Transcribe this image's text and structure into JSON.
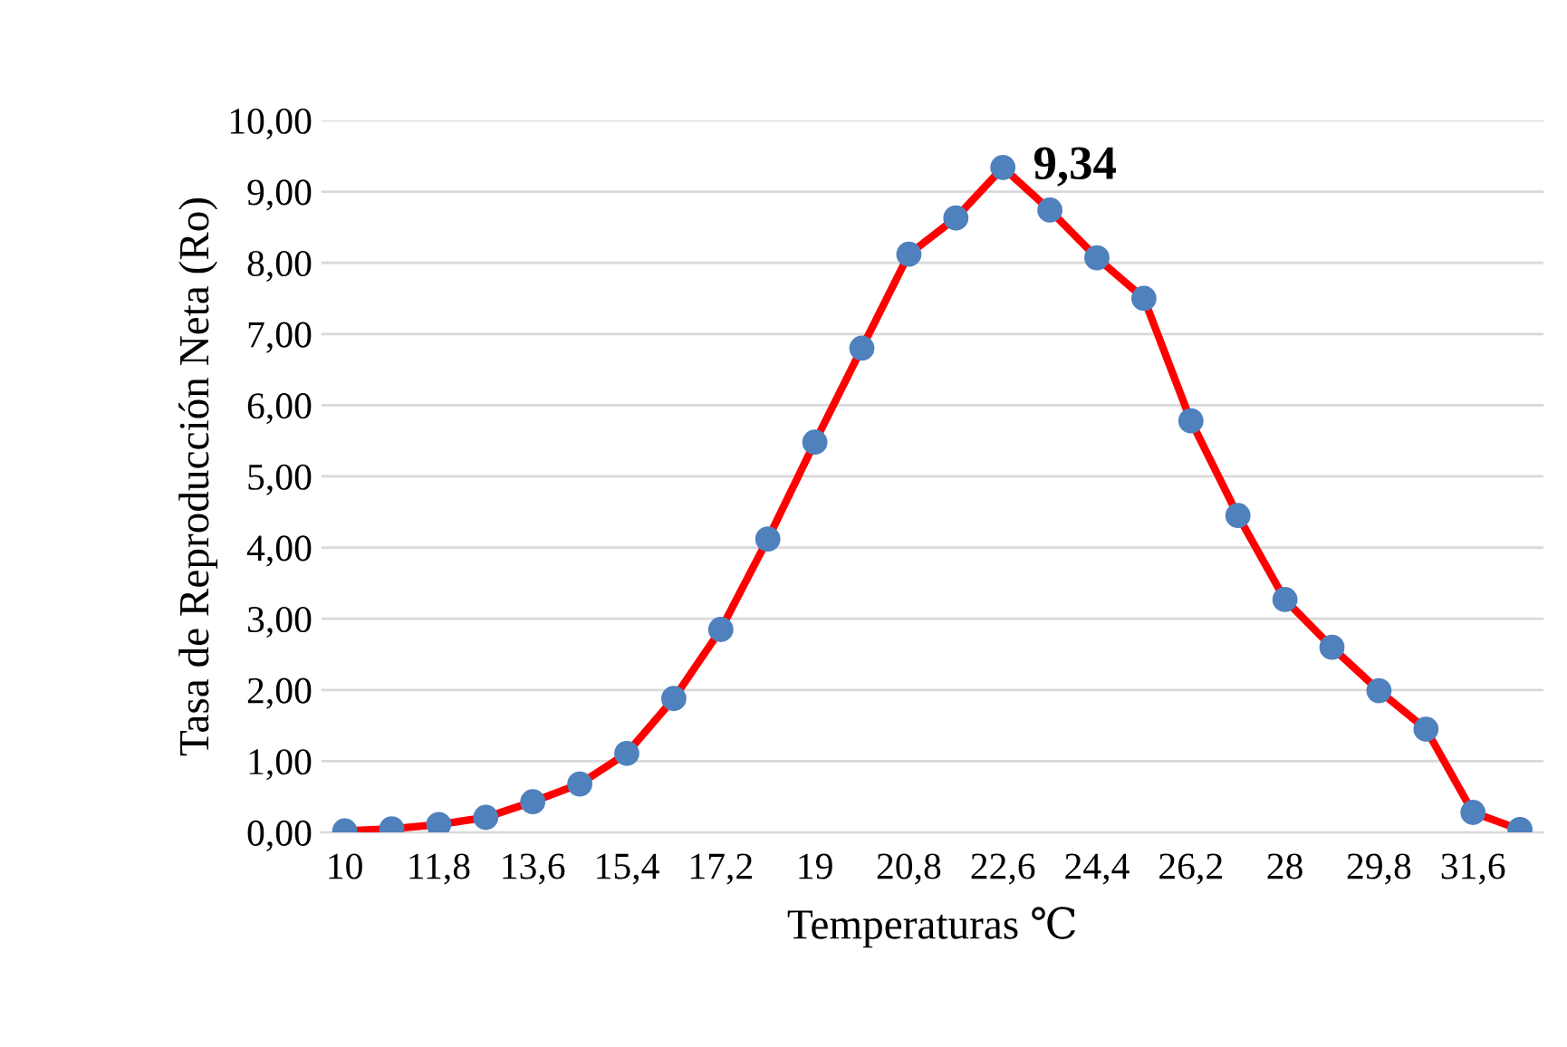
{
  "chart_data": {
    "type": "line",
    "xlabel": "Temperaturas ℃",
    "ylabel": "Tasa de Reproducción Neta (Ro)",
    "categories": [
      "10",
      null,
      "11,8",
      null,
      "13,6",
      null,
      "15,4",
      null,
      "17,2",
      null,
      "19",
      null,
      "20,8",
      null,
      "22,6",
      null,
      "24,4",
      null,
      "26,2",
      null,
      "28",
      null,
      "29,8",
      null,
      "31,6",
      null
    ],
    "series": [
      {
        "color": "#ff0000",
        "colors": [
          "#4f81bd",
          "#4f81bd",
          "#4f81bd",
          "#4f81bd",
          "#4f81bd",
          "#4f81bd",
          "#4f81bd",
          "#4f81bd",
          "#4f81bd",
          "#4f81bd",
          "#4f81bd",
          "#4f81bd",
          "#4f81bd",
          "#4f81bd",
          "#4f81bd",
          "#4f81bd",
          "#4f81bd",
          "#4f81bd",
          "#4f81bd",
          "#4f81bd",
          "#4f81bd",
          "#4f81bd",
          "#4f81bd",
          "#4f81bd",
          "#4f81bd",
          "#4f81bd"
        ],
        "values": [
          0.02,
          0.05,
          0.11,
          0.21,
          0.43,
          0.68,
          1.11,
          1.88,
          2.85,
          4.12,
          5.48,
          6.8,
          8.12,
          8.63,
          9.34,
          8.74,
          8.07,
          7.5,
          5.78,
          4.45,
          3.27,
          2.6,
          1.99,
          1.45,
          0.28,
          0.04
        ]
      }
    ],
    "ylim": [
      0,
      10
    ],
    "yticks": [
      {
        "value": 0,
        "label": "0,00"
      },
      {
        "value": 1,
        "label": "1,00"
      },
      {
        "value": 2,
        "label": "2,00"
      },
      {
        "value": 3,
        "label": "3,00"
      },
      {
        "value": 4,
        "label": "4,00"
      },
      {
        "value": 5,
        "label": "5,00"
      },
      {
        "value": 6,
        "label": "6,00"
      },
      {
        "value": 7,
        "label": "7,00"
      },
      {
        "value": 8,
        "label": "8,00"
      },
      {
        "value": 9,
        "label": "9,00"
      },
      {
        "value": 10,
        "label": "10,00"
      }
    ],
    "grid": "y",
    "marker": "circle",
    "line_style": "solid",
    "annotations": [
      {
        "text": "9,34",
        "x": "22,6",
        "y": 9.34
      }
    ]
  }
}
